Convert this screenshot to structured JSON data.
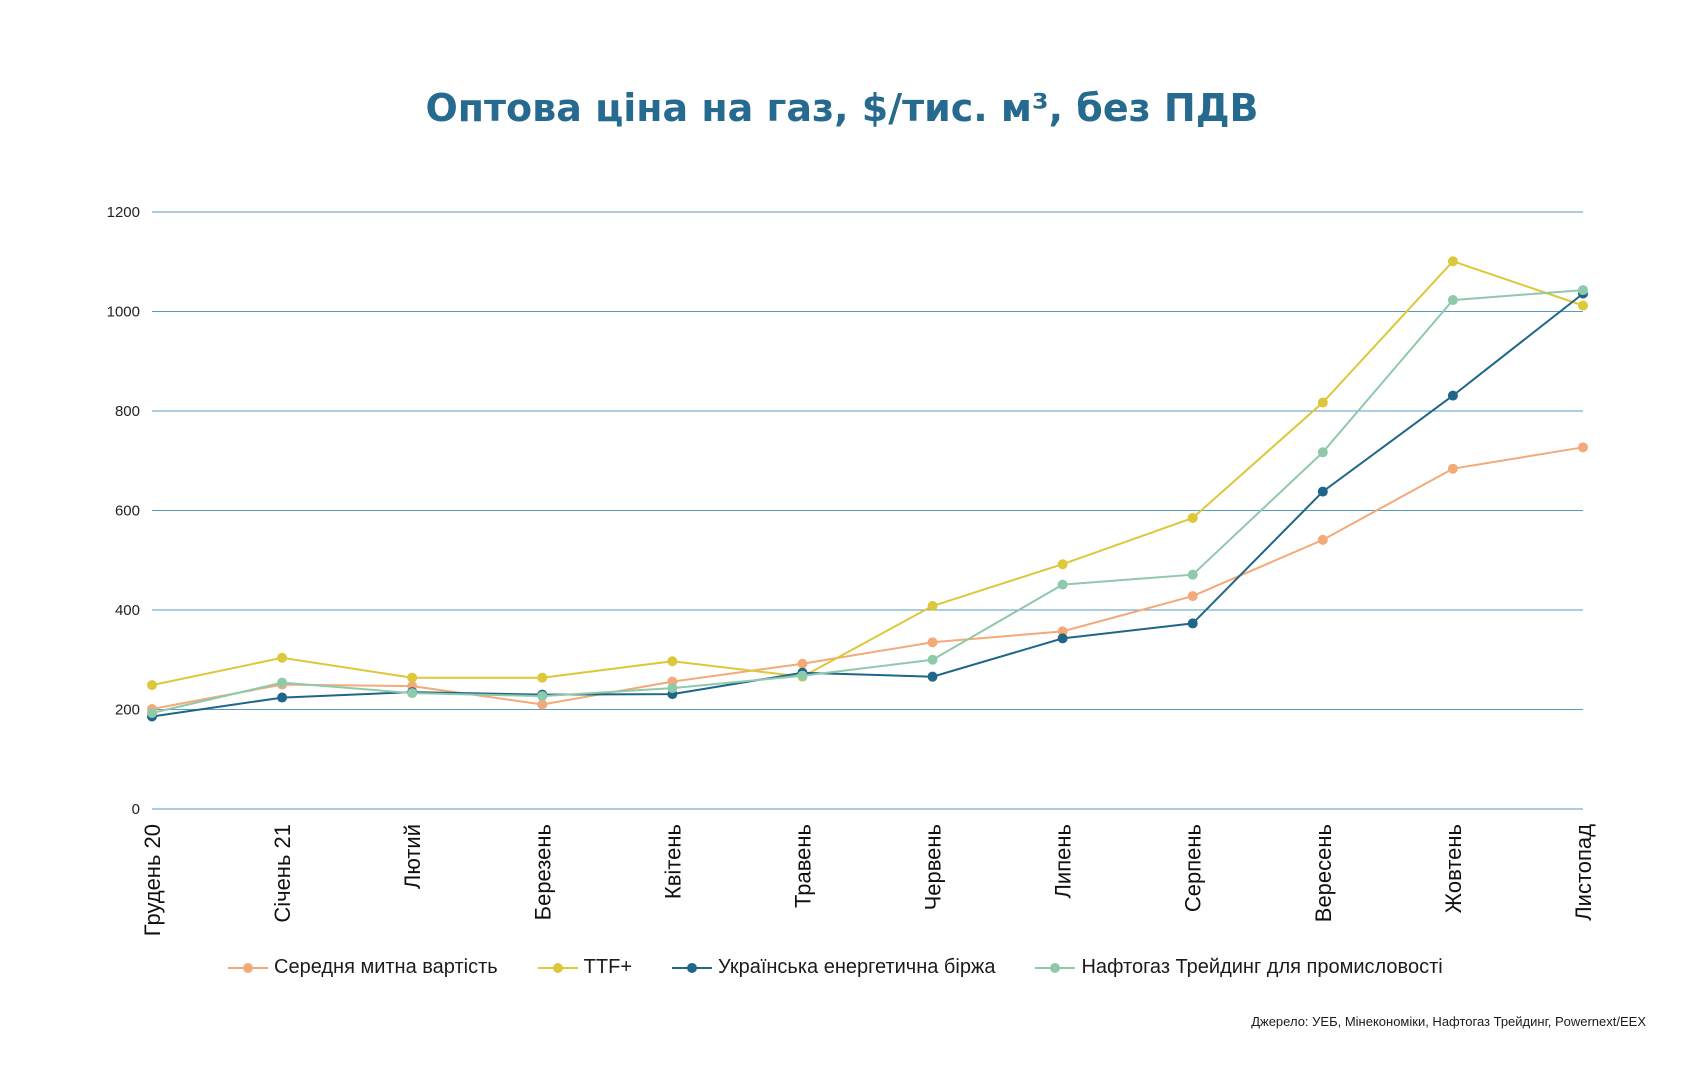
{
  "chart_data": {
    "type": "line",
    "title": "Оптова ціна на газ, $/тис. м³, без ПДВ",
    "categories": [
      "Грудень 20",
      "Січень 21",
      "Лютий",
      "Березень",
      "Квітень",
      "Травень",
      "Червень",
      "Липень",
      "Серпень",
      "Вересень",
      "Жовтень",
      "Листопад"
    ],
    "ylim": [
      0,
      1200
    ],
    "yticks": [
      0,
      200,
      400,
      600,
      800,
      1000,
      1200
    ],
    "grid": true,
    "legend_position": "bottom",
    "series": [
      {
        "name": "Середня митна вартість",
        "color": "#f4a979",
        "values": [
          201,
          250,
          247,
          210,
          256,
          292,
          335,
          357,
          428,
          541,
          684,
          727
        ]
      },
      {
        "name": "TTF+",
        "color": "#dcc83a",
        "values": [
          249,
          304,
          264,
          264,
          297,
          266,
          408,
          492,
          585,
          817,
          1101,
          1012
        ]
      },
      {
        "name": "Українська енергетична біржа",
        "color": "#1f6688",
        "values": [
          186,
          224,
          235,
          230,
          231,
          274,
          266,
          343,
          373,
          638,
          831,
          1036
        ]
      },
      {
        "name": "Нафтогаз Трейдинг для промисловості",
        "color": "#8fc9ab",
        "values": [
          193,
          254,
          233,
          227,
          243,
          268,
          300,
          451,
          471,
          717,
          1023,
          1043
        ]
      }
    ]
  },
  "source": "Джерело: УЕБ, Мінекономіки, Нафтогаз Трейдинг, Powernext/EEX"
}
